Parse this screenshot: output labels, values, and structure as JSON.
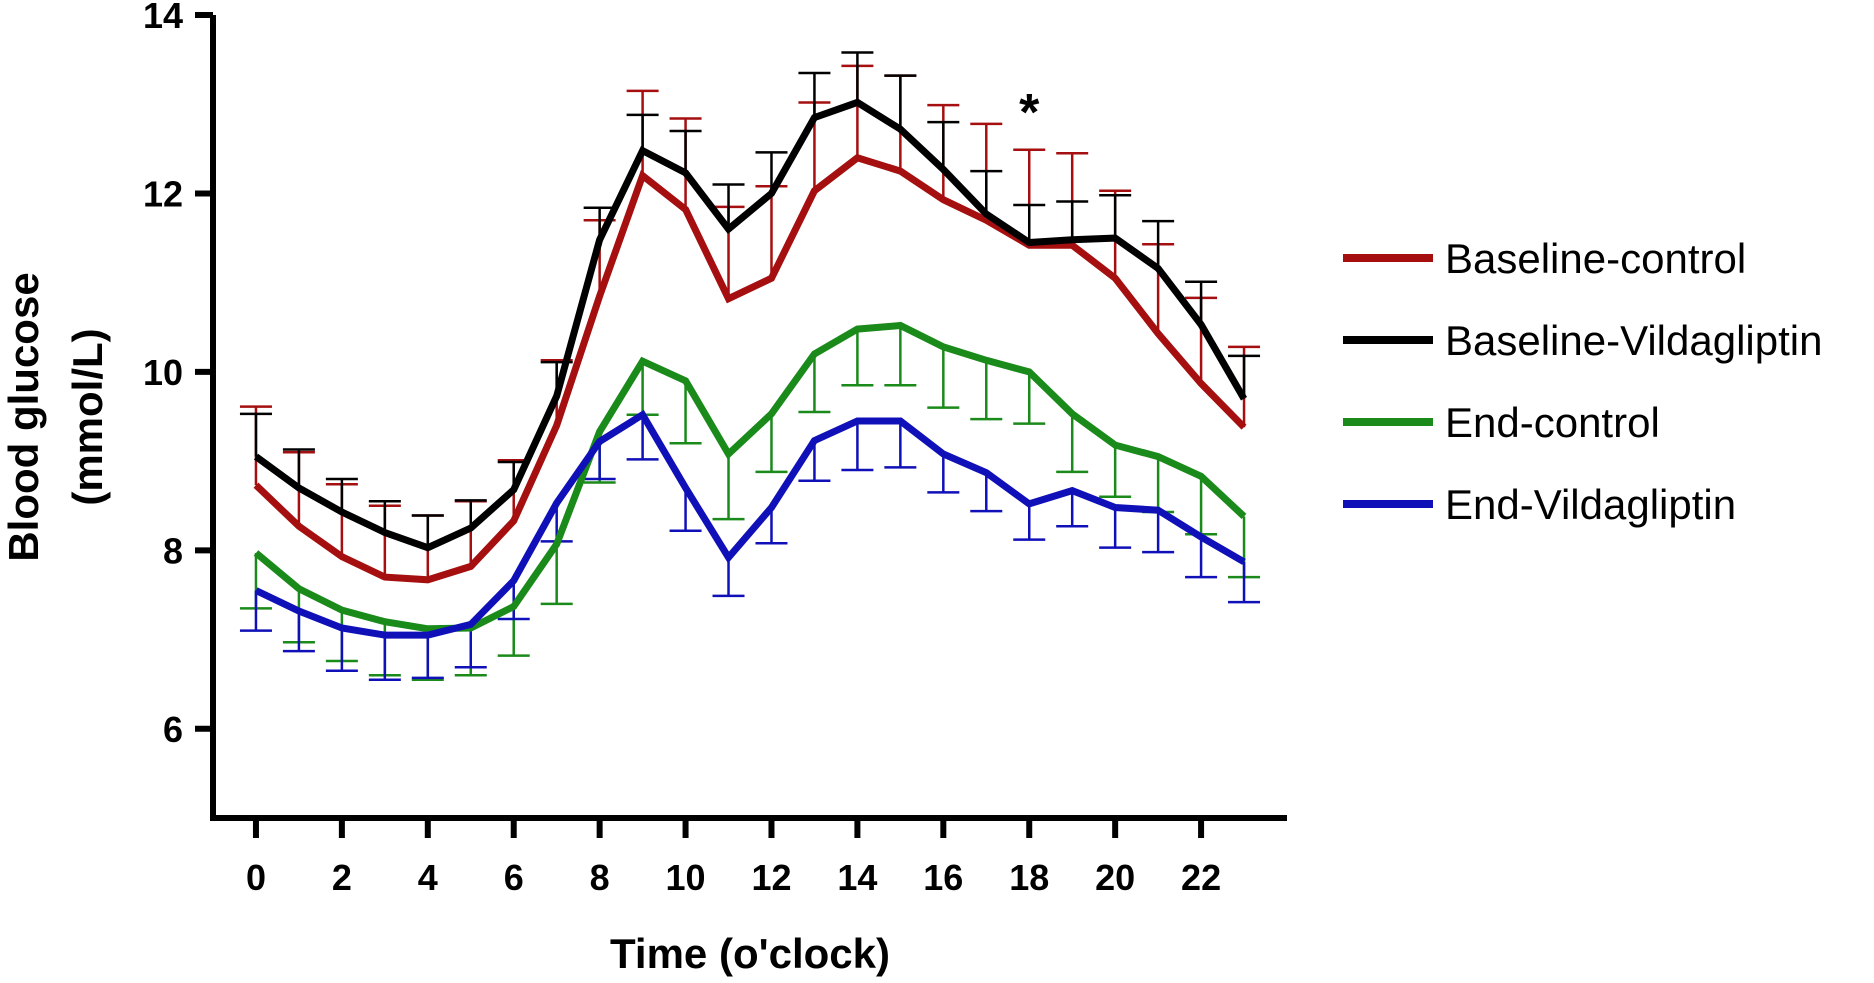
{
  "chart_data": {
    "type": "line",
    "title": "",
    "xlabel": "Time (o'clock)",
    "ylabel_line1": "Blood glucose",
    "ylabel_line2": "(mmol/L)",
    "xlim": [
      -1,
      24
    ],
    "ylim": [
      5,
      14
    ],
    "x": [
      0,
      1,
      2,
      3,
      4,
      5,
      6,
      7,
      8,
      9,
      10,
      11,
      12,
      13,
      14,
      15,
      16,
      17,
      18,
      19,
      20,
      21,
      22,
      23
    ],
    "xticks": [
      0,
      2,
      4,
      6,
      8,
      10,
      12,
      14,
      16,
      18,
      20,
      22
    ],
    "xtick_labels": [
      "0",
      "2",
      "4",
      "6",
      "8",
      "10",
      "12",
      "14",
      "16",
      "18",
      "20",
      "22"
    ],
    "yticks": [
      6,
      8,
      10,
      12,
      14
    ],
    "ytick_labels": [
      "6",
      "8",
      "10",
      "12",
      "14"
    ],
    "grid": false,
    "legend_position": "right",
    "annotations": [
      {
        "text": "*",
        "x": 18
      }
    ],
    "series": [
      {
        "name": "Baseline-control",
        "color": "#a50f0f",
        "error_direction": "up",
        "values": [
          8.73,
          8.27,
          7.93,
          7.7,
          7.67,
          7.82,
          8.33,
          9.4,
          10.85,
          12.2,
          11.82,
          10.82,
          11.05,
          12.03,
          12.4,
          12.25,
          11.93,
          11.7,
          11.42,
          11.42,
          11.05,
          10.43,
          9.87,
          9.38
        ],
        "errors": [
          0.88,
          0.83,
          0.81,
          0.8,
          0.72,
          0.73,
          0.68,
          0.73,
          0.85,
          0.95,
          1.02,
          1.03,
          1.03,
          0.99,
          1.03,
          1.07,
          1.06,
          1.08,
          1.07,
          1.03,
          0.98,
          1.0,
          0.96,
          0.9
        ]
      },
      {
        "name": "Baseline-Vildagliptin",
        "color": "#000000",
        "error_direction": "up",
        "values": [
          9.05,
          8.7,
          8.43,
          8.2,
          8.03,
          8.25,
          8.68,
          9.73,
          11.48,
          12.48,
          12.23,
          11.6,
          12.0,
          12.85,
          13.02,
          12.72,
          12.27,
          11.77,
          11.45,
          11.48,
          11.5,
          11.16,
          10.53,
          9.7
        ],
        "errors": [
          0.48,
          0.43,
          0.37,
          0.35,
          0.36,
          0.31,
          0.31,
          0.38,
          0.36,
          0.4,
          0.47,
          0.5,
          0.46,
          0.5,
          0.56,
          0.6,
          0.53,
          0.48,
          0.42,
          0.43,
          0.48,
          0.53,
          0.48,
          0.48
        ]
      },
      {
        "name": "End-control",
        "color": "#1a8a1a",
        "error_direction": "down",
        "values": [
          7.97,
          7.57,
          7.33,
          7.2,
          7.12,
          7.13,
          7.37,
          8.07,
          9.33,
          10.12,
          9.9,
          9.08,
          9.53,
          10.2,
          10.48,
          10.52,
          10.28,
          10.13,
          10.0,
          9.53,
          9.18,
          9.05,
          8.83,
          8.38
        ],
        "errors": [
          0.62,
          0.6,
          0.57,
          0.6,
          0.57,
          0.53,
          0.55,
          0.67,
          0.57,
          0.6,
          0.7,
          0.73,
          0.65,
          0.65,
          0.63,
          0.67,
          0.68,
          0.66,
          0.58,
          0.65,
          0.58,
          0.62,
          0.65,
          0.68
        ]
      },
      {
        "name": "End-Vildagliptin",
        "color": "#1010b8",
        "error_direction": "down",
        "values": [
          7.55,
          7.32,
          7.13,
          7.05,
          7.05,
          7.17,
          7.66,
          8.53,
          9.22,
          9.52,
          8.7,
          7.92,
          8.48,
          9.23,
          9.45,
          9.45,
          9.08,
          8.87,
          8.52,
          8.67,
          8.48,
          8.45,
          8.15,
          7.87
        ],
        "errors": [
          0.45,
          0.45,
          0.48,
          0.5,
          0.48,
          0.48,
          0.43,
          0.43,
          0.42,
          0.5,
          0.48,
          0.43,
          0.4,
          0.45,
          0.55,
          0.52,
          0.43,
          0.43,
          0.4,
          0.4,
          0.45,
          0.47,
          0.45,
          0.45
        ]
      }
    ]
  }
}
